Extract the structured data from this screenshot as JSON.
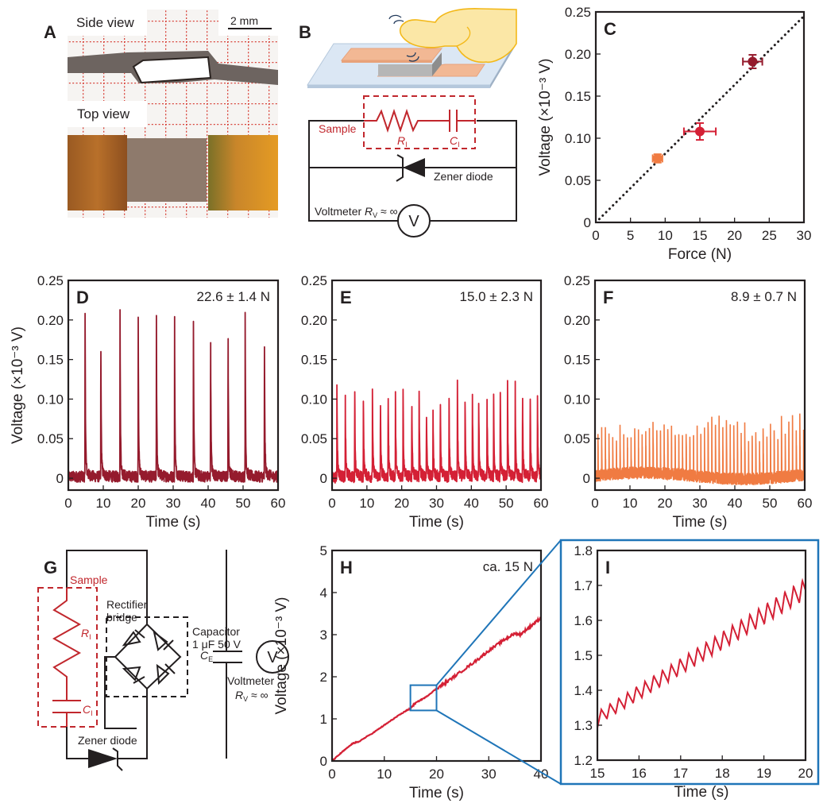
{
  "colors": {
    "dark_red": "#951b2d",
    "red": "#d42035",
    "orange": "#f07b42",
    "blue": "#1f75b8",
    "circuit_red": "#c1272d",
    "black": "#231f20"
  },
  "panel_a": {
    "letter": "A",
    "side_view_label": "Side view",
    "top_view_label": "Top view",
    "scale_bar_label": "2 mm"
  },
  "panel_b": {
    "letter": "B",
    "sample_label": "Sample",
    "ri_label": "R",
    "ri_sub": "I",
    "ci_label": "C",
    "ci_sub": "I",
    "zener_label": "Zener diode",
    "voltmeter_label": "Voltmeter ",
    "rv_label": "R",
    "rv_sub": "V",
    "rv_value": " ≈ ∞",
    "meter_symbol": "V"
  },
  "panel_g": {
    "letter": "G",
    "sample_label": "Sample",
    "ri_label": "R",
    "ri_sub": "I",
    "ci_label": "C",
    "ci_sub": "I",
    "rectifier_label_1": "Rectifier",
    "rectifier_label_2": "bridge",
    "capacitor_label_1": "Capacitor",
    "capacitor_label_2": "1 μF  50 V",
    "ce_label": "C",
    "ce_sub": "E",
    "voltmeter_label": "Voltmeter",
    "rv_label": "R",
    "rv_sub": "V",
    "rv_value": " ≈ ∞",
    "zener_label": "Zener diode",
    "meter_symbol": "V"
  },
  "chart_data": [
    {
      "id": "C",
      "type": "scatter",
      "letter": "C",
      "xlabel": "Force (N)",
      "ylabel": "Voltage (×10⁻³ V)",
      "xlim": [
        0,
        30
      ],
      "ylim": [
        0,
        0.25
      ],
      "xticks": [
        "0",
        "5",
        "10",
        "15",
        "20",
        "25",
        "30"
      ],
      "yticks": [
        "0",
        "0.05",
        "0.10",
        "0.15",
        "0.20",
        "0.25"
      ],
      "points": [
        {
          "x": 8.9,
          "y": 0.076,
          "xerr": 0.7,
          "yerr": 0.005,
          "color": "#f07b42"
        },
        {
          "x": 15.0,
          "y": 0.108,
          "xerr": 2.3,
          "yerr": 0.01,
          "color": "#d42035"
        },
        {
          "x": 22.6,
          "y": 0.191,
          "xerr": 1.4,
          "yerr": 0.008,
          "color": "#951b2d"
        }
      ],
      "fit_line": {
        "x": [
          0.5,
          30
        ],
        "y": [
          0.004,
          0.245
        ],
        "style": "dotted"
      }
    },
    {
      "id": "D",
      "type": "line",
      "letter": "D",
      "annotation": "22.6 ± 1.4 N",
      "xlabel": "Time (s)",
      "ylabel": "Voltage (×10⁻³ V)",
      "xlim": [
        0,
        60
      ],
      "ylim": [
        -0.015,
        0.25
      ],
      "xticks": [
        "0",
        "10",
        "20",
        "30",
        "40",
        "50",
        "60"
      ],
      "yticks": [
        "0",
        "0.05",
        "0.10",
        "0.15",
        "0.20",
        "0.25"
      ],
      "color": "#951b2d",
      "baseline": 0.002,
      "noise": 0.007,
      "peak_times": [
        4.8,
        9.3,
        14.8,
        20.0,
        25.2,
        30.4,
        35.8,
        40.7,
        45.7,
        50.6,
        56.1
      ],
      "peak_values": [
        0.195,
        0.173,
        0.196,
        0.19,
        0.19,
        0.192,
        0.184,
        0.193,
        0.194,
        0.197,
        0.178
      ]
    },
    {
      "id": "E",
      "type": "line",
      "letter": "E",
      "annotation": "15.0 ± 2.3 N",
      "xlabel": "Time (s)",
      "xlim": [
        0,
        60
      ],
      "ylim": [
        -0.015,
        0.25
      ],
      "xticks": [
        "0",
        "10",
        "20",
        "30",
        "40",
        "50",
        "60"
      ],
      "yticks": [
        "0",
        "0.05",
        "0.10",
        "0.15",
        "0.20",
        "0.25"
      ],
      "color": "#d42035",
      "baseline": 0.001,
      "noise": 0.007,
      "peak_times": [
        1.4,
        3.8,
        6.5,
        9.0,
        11.6,
        13.9,
        16.1,
        18.2,
        20.4,
        22.9,
        25.0,
        27.1,
        29.0,
        31.1,
        33.6,
        36.0,
        38.2,
        40.3,
        42.1,
        44.5,
        46.4,
        48.3,
        50.4,
        52.6,
        54.7,
        56.9,
        59.0
      ],
      "peak_values": [
        0.112,
        0.088,
        0.109,
        0.091,
        0.104,
        0.09,
        0.111,
        0.092,
        0.1,
        0.101,
        0.102,
        0.082,
        0.07,
        0.094,
        0.086,
        0.113,
        0.091,
        0.105,
        0.1,
        0.102,
        0.099,
        0.112,
        0.105,
        0.115,
        0.105,
        0.106,
        0.089
      ]
    },
    {
      "id": "F",
      "type": "line",
      "letter": "F",
      "annotation": "8.9 ± 0.7 N",
      "xlabel": "Time (s)",
      "xlim": [
        0,
        60
      ],
      "ylim": [
        -0.015,
        0.25
      ],
      "xticks": [
        "0",
        "10",
        "20",
        "30",
        "40",
        "50",
        "60"
      ],
      "yticks": [
        "0",
        "0.05",
        "0.10",
        "0.15",
        "0.20",
        "0.25"
      ],
      "color": "#f07b42",
      "baseline": 0.003,
      "noise": 0.008,
      "peak_period": 1.05,
      "peak_envelope": [
        [
          0,
          0.058
        ],
        [
          10,
          0.06
        ],
        [
          15,
          0.066
        ],
        [
          20,
          0.074
        ],
        [
          25,
          0.07
        ],
        [
          30,
          0.077
        ],
        [
          35,
          0.076
        ],
        [
          38.5,
          0.08
        ],
        [
          45,
          0.062
        ],
        [
          50,
          0.07
        ],
        [
          55,
          0.073
        ],
        [
          60,
          0.076
        ]
      ]
    },
    {
      "id": "H",
      "type": "line",
      "letter": "H",
      "annotation": "ca. 15 N",
      "xlabel": "Time (s)",
      "ylabel": "Voltage (×10⁻³ V)",
      "xlim": [
        0,
        40
      ],
      "ylim": [
        0,
        5
      ],
      "xticks": [
        "0",
        "10",
        "20",
        "30",
        "40"
      ],
      "yticks": [
        "0",
        "1",
        "2",
        "3",
        "4",
        "5"
      ],
      "color": "#d42035",
      "x": [
        0,
        2,
        4,
        5,
        8,
        10,
        12,
        14,
        15,
        16,
        18,
        20,
        22,
        25,
        28,
        30,
        33,
        35,
        36,
        38,
        40
      ],
      "y": [
        0,
        0.22,
        0.42,
        0.45,
        0.68,
        0.85,
        1.02,
        1.18,
        1.25,
        1.38,
        1.52,
        1.72,
        1.88,
        2.15,
        2.42,
        2.62,
        2.88,
        3.03,
        3.0,
        3.2,
        3.4
      ],
      "zoom_box": {
        "x": [
          15,
          20
        ],
        "y": [
          1.2,
          1.8
        ]
      }
    },
    {
      "id": "I",
      "type": "line",
      "letter": "I",
      "xlabel": "Time (s)",
      "xlim": [
        15,
        20
      ],
      "ylim": [
        1.2,
        1.8
      ],
      "xticks": [
        "15",
        "16",
        "17",
        "18",
        "19",
        "20"
      ],
      "yticks": [
        "1.2",
        "1.3",
        "1.4",
        "1.5",
        "1.6",
        "1.7",
        "1.8"
      ],
      "color": "#d42035",
      "trend": {
        "x": [
          15,
          20
        ],
        "y": [
          1.32,
          1.69
        ]
      },
      "ripple_period": 0.21,
      "ripple_amplitude": 0.045
    }
  ]
}
